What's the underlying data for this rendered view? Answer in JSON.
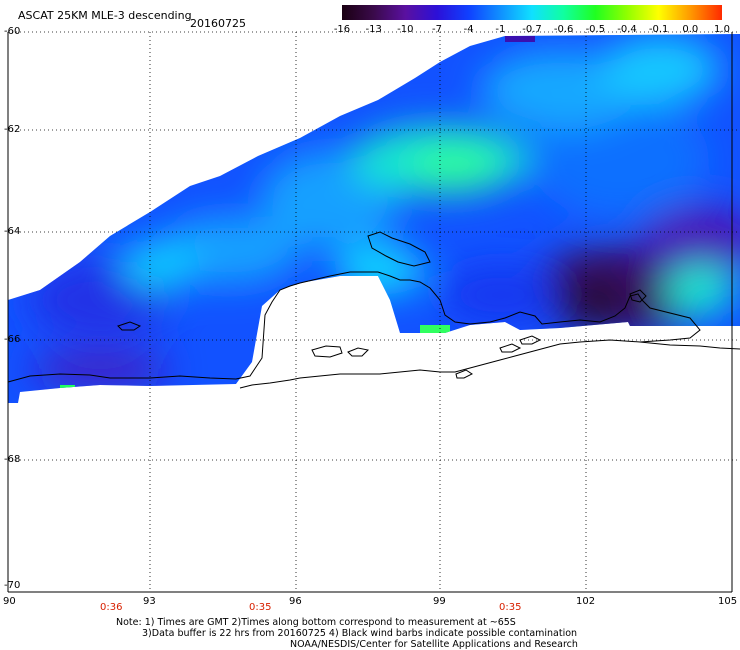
{
  "header": {
    "title": "ASCAT 25KM MLE-3 descending",
    "date": "20160725"
  },
  "colorbar": {
    "labels": [
      "-16",
      "-13",
      "-10",
      "-7",
      "-4",
      "-1",
      "-0.7",
      "-0.6",
      "-0.5",
      "-0.4",
      "-0.1",
      "0.0",
      "1.0"
    ],
    "colors": [
      "#1a0012",
      "#3a0a4a",
      "#5a10a0",
      "#2c10d8",
      "#1040ff",
      "#1090ff",
      "#10e0ff",
      "#10ffa0",
      "#20ff20",
      "#90ff00",
      "#ffff00",
      "#ff9900",
      "#ff2a00"
    ]
  },
  "map": {
    "lat_labels": [
      "-60",
      "-62",
      "-64",
      "-66",
      "-68",
      "-70"
    ],
    "lon_labels": [
      "90",
      "93",
      "96",
      "99",
      "102",
      "105"
    ],
    "time_labels": [
      "0:36",
      "0:35",
      "0:35"
    ]
  },
  "notes": {
    "line1": "Note: 1) Times are GMT 2)Times along bottom correspond to measurement at ~65S",
    "line2": "3)Data buffer is 22 hrs from 20160725 4) Black wind barbs indicate possible contamination",
    "line3": "NOAA/NESDIS/Center for Satellite Applications and Research"
  }
}
